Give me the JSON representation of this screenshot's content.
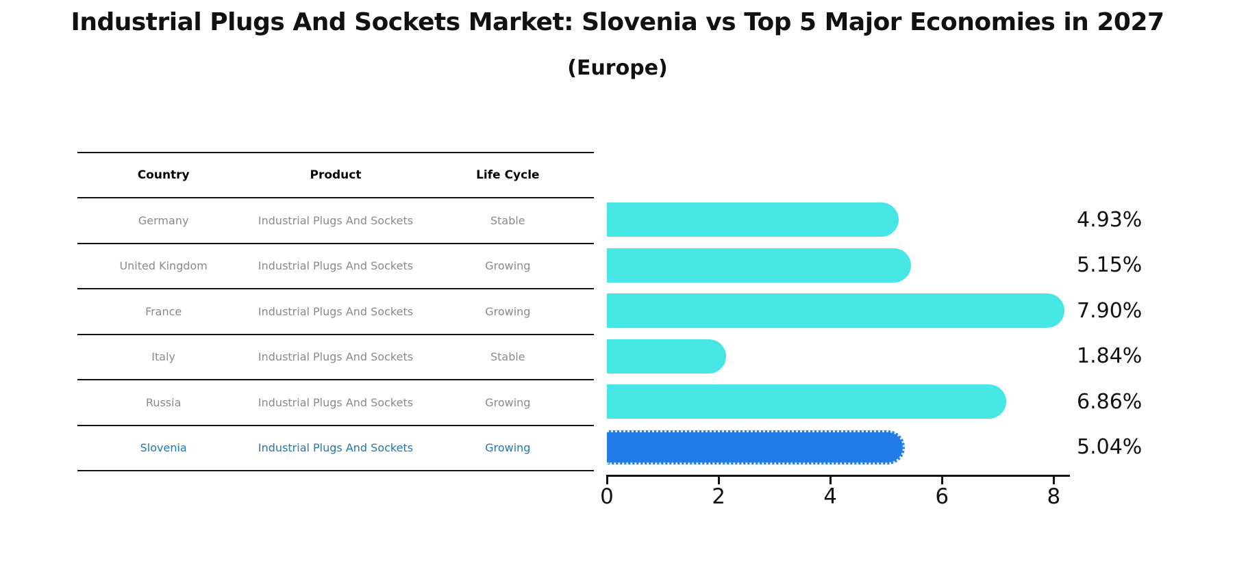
{
  "colors": {
    "bar": "#45E6E4",
    "highlight_bar": "#217CE8",
    "highlight_text": "#1F77B4",
    "row_text": "#8A8A8A"
  },
  "table": {
    "headers": [
      "Country",
      "Product",
      "Life Cycle"
    ],
    "rows": [
      {
        "country": "Germany",
        "product": "Industrial Plugs And Sockets",
        "life_cycle": "Stable",
        "highlight": false
      },
      {
        "country": "United Kingdom",
        "product": "Industrial Plugs And Sockets",
        "life_cycle": "Growing",
        "highlight": false
      },
      {
        "country": "France",
        "product": "Industrial Plugs And Sockets",
        "life_cycle": "Growing",
        "highlight": false
      },
      {
        "country": "Italy",
        "product": "Industrial Plugs And Sockets",
        "life_cycle": "Stable",
        "highlight": false
      },
      {
        "country": "Russia",
        "product": "Industrial Plugs And Sockets",
        "life_cycle": "Growing",
        "highlight": false
      },
      {
        "country": "Slovenia",
        "product": "Industrial Plugs And Sockets",
        "life_cycle": "Growing",
        "highlight": true
      }
    ]
  },
  "chart_data": {
    "type": "bar",
    "orientation": "horizontal",
    "title": "Industrial Plugs And Sockets Market: Slovenia vs Top 5 Major Economies in 2027",
    "subtitle": "(Europe)",
    "categories": [
      "Germany",
      "United Kingdom",
      "France",
      "Italy",
      "Russia",
      "Slovenia"
    ],
    "values": [
      4.93,
      5.15,
      7.9,
      1.84,
      6.86,
      5.04
    ],
    "labels": [
      "4.93%",
      "5.15%",
      "7.90%",
      "1.84%",
      "6.86%",
      "5.04%"
    ],
    "highlight_index": 5,
    "xlabel": "",
    "ylabel": "",
    "xticks": [
      0,
      2,
      4,
      6,
      8
    ],
    "xlim": [
      0,
      8.29
    ],
    "grid": false,
    "legend": false,
    "bar_color": "#45E6E4",
    "highlight_color": "#217CE8"
  }
}
